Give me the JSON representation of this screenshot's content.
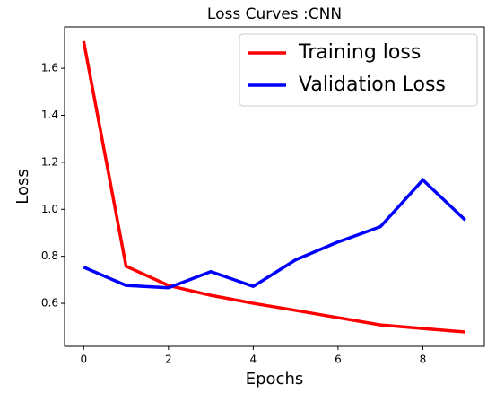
{
  "chart_data": {
    "type": "line",
    "title": "Loss Curves :CNN",
    "xlabel": "Epochs",
    "ylabel": "Loss",
    "x": [
      0,
      1,
      2,
      3,
      4,
      5,
      6,
      7,
      8,
      9
    ],
    "series": [
      {
        "name": "Training loss",
        "color": "#ff0000",
        "values": [
          1.715,
          0.758,
          0.676,
          0.634,
          0.6,
          0.57,
          0.539,
          0.508,
          0.493,
          0.478
        ]
      },
      {
        "name": "Validation Loss",
        "color": "#0000ff",
        "values": [
          0.754,
          0.676,
          0.666,
          0.735,
          0.672,
          0.785,
          0.861,
          0.926,
          1.125,
          0.954
        ]
      }
    ],
    "xlim": [
      -0.45,
      9.45
    ],
    "ylim": [
      0.417,
      1.776
    ],
    "xticks": [
      0,
      2,
      4,
      6,
      8
    ],
    "yticks": [
      0.6,
      0.8,
      {
        "value": 1,
        "label": "1.0"
      },
      1.2,
      1.4,
      1.6
    ],
    "legend": "upper right"
  }
}
